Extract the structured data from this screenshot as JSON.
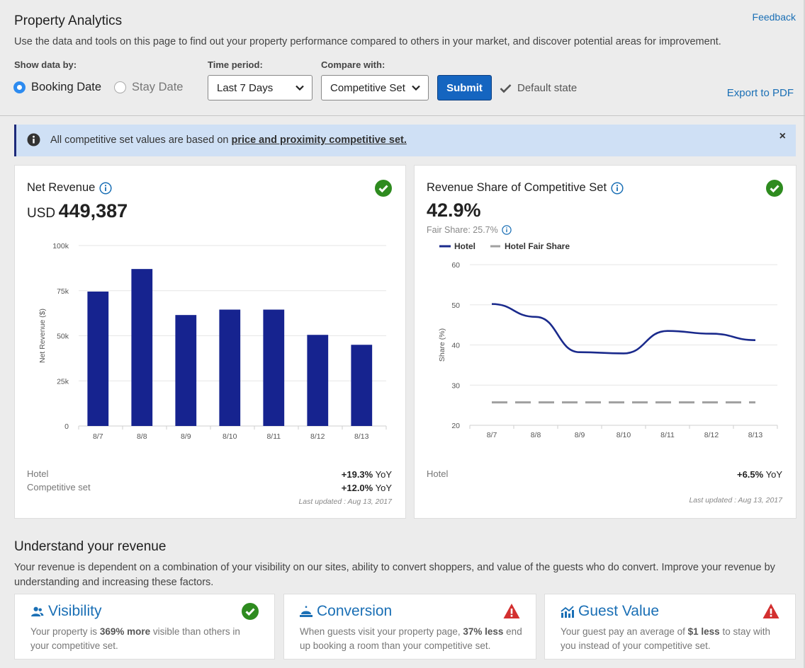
{
  "header": {
    "title": "Property Analytics",
    "feedback": "Feedback",
    "intro": "Use the data and tools on this page to find out your property performance compared to others in your market, and discover potential areas for improvement."
  },
  "filters": {
    "show_data_by_label": "Show data by:",
    "options": [
      "Booking Date",
      "Stay Date"
    ],
    "selected": "Booking Date",
    "time_period_label": "Time period:",
    "time_period_value": "Last 7 Days",
    "compare_label": "Compare with:",
    "compare_value": "Competitive Set",
    "submit": "Submit",
    "default_state": "Default state",
    "export": "Export to PDF"
  },
  "banner": {
    "text": "All competitive set values are based on ",
    "link": "price and proximity competitive set.",
    "close": "×"
  },
  "net_revenue": {
    "title": "Net Revenue",
    "currency": "USD",
    "value": "449,387",
    "footer": {
      "hotel_label": "Hotel",
      "hotel_change": "+19.3%",
      "comp_label": "Competitive set",
      "comp_change": "+12.0%",
      "yoy": "YoY",
      "updated": "Last updated : Aug 13, 2017"
    }
  },
  "revenue_share": {
    "title": "Revenue Share of Competitive Set",
    "value": "42.9%",
    "fair_share": "Fair Share: 25.7%",
    "footer": {
      "hotel_label": "Hotel",
      "hotel_change": "+6.5%",
      "yoy": "YoY",
      "updated": "Last updated : Aug 13, 2017"
    }
  },
  "chart_data": [
    {
      "type": "bar",
      "categories": [
        "8/7",
        "8/8",
        "8/9",
        "8/10",
        "8/11",
        "8/12",
        "8/13"
      ],
      "values": [
        74500,
        87000,
        61500,
        64500,
        64500,
        50500,
        45000
      ],
      "ylabel": "Net Revenue ($)",
      "ylim": [
        0,
        100000
      ],
      "yticks": [
        "0",
        "25k",
        "50k",
        "75k",
        "100k"
      ],
      "color": "#16238f",
      "grid": true
    },
    {
      "type": "line",
      "categories": [
        "8/7",
        "8/8",
        "8/9",
        "8/10",
        "8/11",
        "8/12",
        "8/13"
      ],
      "series": [
        {
          "name": "Hotel",
          "values": [
            50.2,
            47,
            38.2,
            37.9,
            43.5,
            42.8,
            41.2
          ],
          "color": "#1a2a8c",
          "style": "solid"
        },
        {
          "name": "Hotel Fair Share",
          "values": [
            25.7,
            25.7,
            25.7,
            25.7,
            25.7,
            25.7,
            25.7
          ],
          "color": "#a0a0a0",
          "style": "dashed"
        }
      ],
      "ylabel": "Share (%)",
      "ylim": [
        20,
        60
      ],
      "yticks": [
        "20",
        "30",
        "40",
        "50",
        "60"
      ],
      "legend": "top-left",
      "grid": true
    }
  ],
  "understand": {
    "title": "Understand your revenue",
    "desc": "Your revenue is dependent on a combination of your visibility on our sites, ability to convert shoppers, and value of the guests who do convert. Improve your revenue by understanding and increasing these factors.",
    "cards": [
      {
        "title": "Visibility",
        "pre": "Your property is ",
        "bold": "369% more",
        "post": " visible than others in your competitive set.",
        "status": "ok"
      },
      {
        "title": "Conversion",
        "pre": "When guests visit your property page, ",
        "bold": "37% less",
        "post": " end up booking a room than your competitive set.",
        "status": "warning"
      },
      {
        "title": "Guest Value",
        "pre": "Your guest pay an average of ",
        "bold": "$1 less",
        "post": " to stay with you instead of your competitive set.",
        "status": "warning"
      }
    ]
  },
  "colors": {
    "accent": "#1565c0",
    "link": "#1a6fb5",
    "ok": "#2e8b1f",
    "warning": "#d32f2f",
    "bar": "#16238f"
  }
}
